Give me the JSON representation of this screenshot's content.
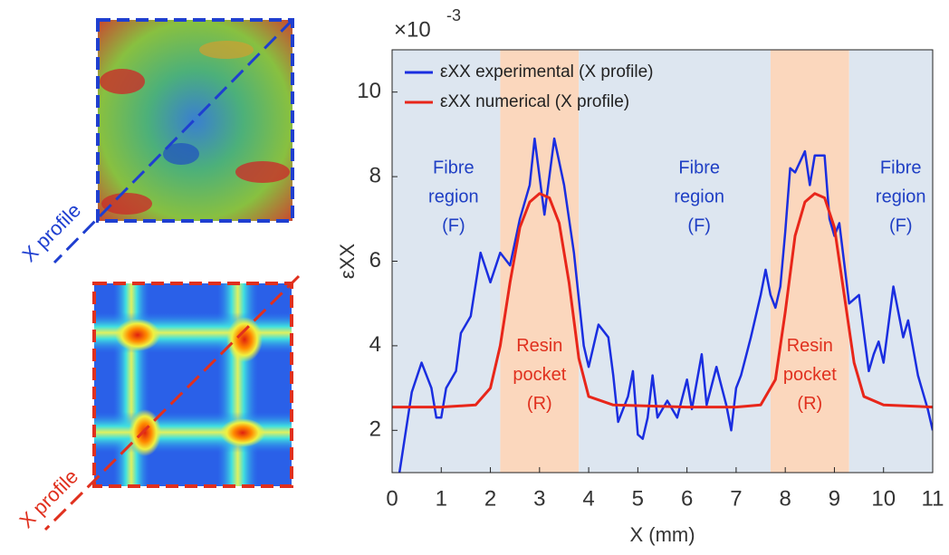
{
  "chart_data": {
    "type": "line",
    "x_label": "X (mm)",
    "y_label": "εXX",
    "y_scale_label": "×10",
    "y_scale_exponent": "-3",
    "xlim": [
      0,
      11
    ],
    "xticks": [
      0,
      1,
      2,
      3,
      4,
      5,
      6,
      7,
      8,
      9,
      10,
      11
    ],
    "ylim": [
      1,
      11
    ],
    "yticks": [
      2,
      4,
      6,
      8,
      10
    ],
    "legend": "top-left",
    "regions": [
      {
        "start": 0,
        "end": 2.2,
        "color": "#dde6f0",
        "label": [
          "Fibre",
          "region",
          "(F)"
        ],
        "label_x": 1.25,
        "label_y": 7.5,
        "label_color": "#1f3fc4"
      },
      {
        "start": 2.2,
        "end": 3.8,
        "color": "#fbd7bd",
        "label": [
          "Resin",
          "pocket",
          "(R)"
        ],
        "label_x": 3.0,
        "label_y": 3.3,
        "label_color": "#e0301e"
      },
      {
        "start": 3.8,
        "end": 7.7,
        "color": "#dde6f0",
        "label": [
          "Fibre",
          "region",
          "(F)"
        ],
        "label_x": 6.25,
        "label_y": 7.5,
        "label_color": "#1f3fc4"
      },
      {
        "start": 7.7,
        "end": 9.3,
        "color": "#fbd7bd",
        "label": [
          "Resin",
          "pocket",
          "(R)"
        ],
        "label_x": 8.5,
        "label_y": 3.3,
        "label_color": "#e0301e"
      },
      {
        "start": 9.3,
        "end": 11,
        "color": "#dde6f0",
        "label": [
          "Fibre",
          "region",
          "(F)"
        ],
        "label_x": 10.35,
        "label_y": 7.5,
        "label_color": "#1f3fc4"
      }
    ],
    "series": [
      {
        "name": "εXX experimental (X profile)",
        "color": "#1a2ee0",
        "x": [
          0.15,
          0.4,
          0.6,
          0.8,
          0.9,
          1.0,
          1.1,
          1.3,
          1.4,
          1.6,
          1.8,
          2.0,
          2.2,
          2.4,
          2.6,
          2.8,
          2.9,
          3.1,
          3.3,
          3.5,
          3.7,
          3.9,
          4.0,
          4.2,
          4.4,
          4.5,
          4.6,
          4.8,
          4.9,
          5.0,
          5.1,
          5.2,
          5.3,
          5.4,
          5.6,
          5.8,
          6.0,
          6.1,
          6.3,
          6.4,
          6.6,
          6.8,
          6.9,
          7.0,
          7.1,
          7.3,
          7.5,
          7.6,
          7.7,
          7.8,
          7.9,
          8.0,
          8.1,
          8.2,
          8.4,
          8.5,
          8.6,
          8.8,
          8.9,
          9.0,
          9.1,
          9.3,
          9.5,
          9.6,
          9.7,
          9.8,
          9.9,
          10.0,
          10.2,
          10.4,
          10.5,
          10.7,
          10.9,
          11
        ],
        "values": [
          1.0,
          2.9,
          3.6,
          3.0,
          2.3,
          2.3,
          3.0,
          3.4,
          4.3,
          4.7,
          6.2,
          5.5,
          6.2,
          5.9,
          7.0,
          7.8,
          8.9,
          7.1,
          8.9,
          7.8,
          6.2,
          4.0,
          3.5,
          4.5,
          4.2,
          3.3,
          2.2,
          2.8,
          3.4,
          1.9,
          1.8,
          2.3,
          3.3,
          2.3,
          2.7,
          2.3,
          3.2,
          2.5,
          3.8,
          2.6,
          3.5,
          2.6,
          2.0,
          3.0,
          3.3,
          4.2,
          5.2,
          5.8,
          5.2,
          4.9,
          5.4,
          6.7,
          8.2,
          8.1,
          8.6,
          7.8,
          8.5,
          8.5,
          7.0,
          6.6,
          6.9,
          5.0,
          5.2,
          4.3,
          3.4,
          3.8,
          4.1,
          3.6,
          5.4,
          4.2,
          4.6,
          3.3,
          2.5,
          2.0
        ]
      },
      {
        "name": "εXX numerical (X profile)",
        "color": "#e8261a",
        "x": [
          0,
          1,
          1.7,
          2.0,
          2.2,
          2.4,
          2.6,
          2.8,
          3.0,
          3.2,
          3.4,
          3.6,
          3.8,
          4.0,
          4.5,
          6,
          7,
          7.5,
          7.8,
          8.0,
          8.2,
          8.4,
          8.6,
          8.8,
          9.0,
          9.2,
          9.4,
          9.6,
          10,
          11
        ],
        "values": [
          2.55,
          2.55,
          2.6,
          3.0,
          4.0,
          5.5,
          6.8,
          7.4,
          7.6,
          7.5,
          6.9,
          5.5,
          3.7,
          2.8,
          2.6,
          2.55,
          2.55,
          2.6,
          3.2,
          4.8,
          6.6,
          7.4,
          7.6,
          7.5,
          6.8,
          5.2,
          3.6,
          2.8,
          2.6,
          2.55
        ]
      }
    ]
  },
  "images": [
    {
      "caption": "X profile",
      "color": "#1f3fd0"
    },
    {
      "caption": "X profile",
      "color": "#e0301e"
    }
  ]
}
